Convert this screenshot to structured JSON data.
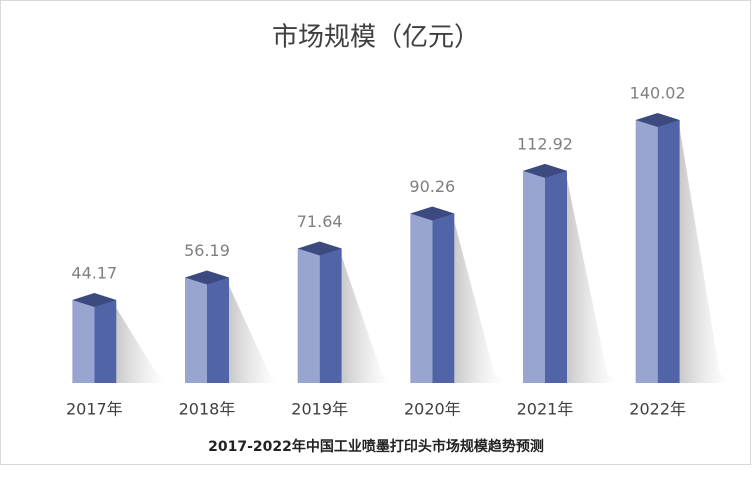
{
  "chart_data": {
    "type": "bar3d",
    "title": "市场规模（亿元）",
    "caption": "2017-2022年中国工业喷墨打印头市场规模趋势预测",
    "categories": [
      "2017年",
      "2018年",
      "2019年",
      "2020年",
      "2021年",
      "2022年"
    ],
    "values": [
      44.17,
      56.19,
      71.64,
      90.26,
      112.92,
      140.02
    ],
    "color": "#5264a8"
  }
}
